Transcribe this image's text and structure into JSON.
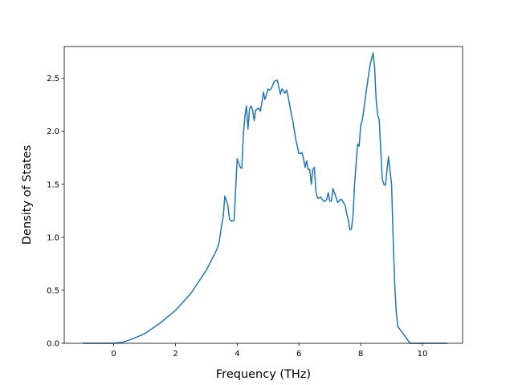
{
  "chart_data": {
    "type": "line",
    "title": "",
    "xlabel": "Frequency (THz)",
    "ylabel": "Density of States",
    "xlim": [
      -1.6,
      11.3
    ],
    "ylim": [
      0.0,
      2.8
    ],
    "xticks": [
      0,
      2,
      4,
      6,
      8,
      10
    ],
    "yticks": [
      0.0,
      0.5,
      1.0,
      1.5,
      2.0,
      2.5
    ],
    "xtick_labels": [
      "0",
      "2",
      "4",
      "6",
      "8",
      "10"
    ],
    "ytick_labels": [
      "0.0",
      "0.5",
      "1.0",
      "1.5",
      "2.0",
      "2.5"
    ],
    "grid": false,
    "legend": "none",
    "colors": {
      "line": "#1f77b4",
      "axes": "#000000",
      "background": "#ffffff"
    },
    "series": [
      {
        "x": [
          -1.0,
          0.0,
          0.3,
          0.6,
          1.0,
          1.5,
          2.0,
          2.5,
          3.0,
          3.3,
          3.4,
          3.45,
          3.5,
          3.55,
          3.6,
          3.7,
          3.75,
          3.82,
          3.9,
          4.0,
          4.1,
          4.15,
          4.2,
          4.25,
          4.3,
          4.35,
          4.4,
          4.45,
          4.5,
          4.55,
          4.6,
          4.7,
          4.75,
          4.8,
          4.85,
          4.9,
          5.0,
          5.05,
          5.1,
          5.2,
          5.25,
          5.3,
          5.4,
          5.45,
          5.5,
          5.55,
          5.6,
          5.65,
          5.7,
          5.72,
          5.8,
          5.9,
          6.0,
          6.05,
          6.1,
          6.15,
          6.2,
          6.25,
          6.3,
          6.35,
          6.4,
          6.45,
          6.5,
          6.55,
          6.6,
          6.65,
          6.7,
          6.8,
          6.85,
          6.9,
          6.95,
          7.0,
          7.05,
          7.1,
          7.2,
          7.25,
          7.3,
          7.35,
          7.4,
          7.5,
          7.55,
          7.6,
          7.65,
          7.7,
          7.75,
          7.8,
          7.85,
          7.9,
          7.95,
          8.0,
          8.05,
          8.1,
          8.15,
          8.2,
          8.3,
          8.4,
          8.45,
          8.5,
          8.55,
          8.6,
          8.65,
          8.7,
          8.75,
          8.8,
          8.9,
          9.0,
          9.05,
          9.1,
          9.15,
          9.2,
          9.3,
          9.4,
          9.5,
          9.6,
          9.7,
          9.8,
          10.0,
          10.5,
          10.8
        ],
        "y": [
          0.0,
          0.0,
          0.01,
          0.04,
          0.09,
          0.19,
          0.31,
          0.47,
          0.69,
          0.86,
          0.93,
          1.02,
          1.12,
          1.2,
          1.39,
          1.3,
          1.17,
          1.15,
          1.16,
          1.74,
          1.66,
          1.65,
          1.97,
          2.14,
          2.24,
          2.02,
          2.21,
          2.24,
          2.2,
          2.1,
          2.2,
          2.22,
          2.19,
          2.27,
          2.37,
          2.3,
          2.4,
          2.39,
          2.4,
          2.47,
          2.48,
          2.48,
          2.35,
          2.4,
          2.38,
          2.36,
          2.39,
          2.33,
          2.25,
          2.21,
          2.1,
          1.92,
          1.79,
          1.79,
          1.8,
          1.74,
          1.66,
          1.72,
          1.64,
          1.64,
          1.5,
          1.64,
          1.66,
          1.43,
          1.37,
          1.37,
          1.38,
          1.34,
          1.34,
          1.36,
          1.42,
          1.34,
          1.34,
          1.46,
          1.38,
          1.33,
          1.34,
          1.36,
          1.35,
          1.3,
          1.22,
          1.16,
          1.07,
          1.08,
          1.2,
          1.49,
          1.69,
          1.88,
          1.86,
          2.06,
          2.1,
          2.2,
          2.32,
          2.42,
          2.62,
          2.74,
          2.61,
          2.3,
          2.15,
          2.11,
          1.82,
          1.55,
          1.5,
          1.49,
          1.76,
          1.5,
          1.0,
          0.57,
          0.3,
          0.16,
          0.12,
          0.08,
          0.04,
          0.0,
          0.0,
          0.0,
          0.0,
          0.0,
          0.0
        ]
      }
    ]
  }
}
